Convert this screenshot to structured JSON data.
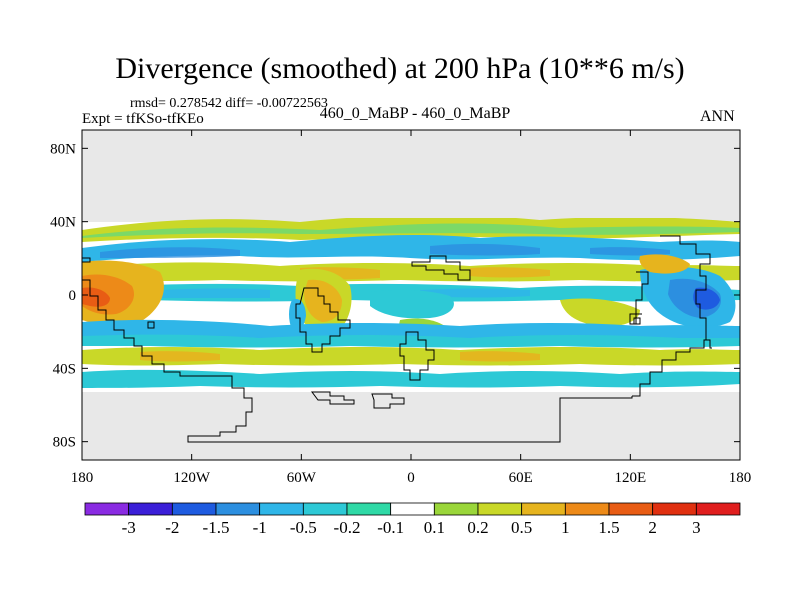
{
  "header": {
    "title": "Divergence (smoothed) at 200 hPa (10**6 m/s)",
    "stats": "rmsd= 0.278542 diff= -0.00722563",
    "experiment": "Expt = tfKSo-tfKEo",
    "case": "460_0_MaBP - 460_0_MaBP",
    "season": "ANN"
  },
  "chart_data": {
    "type": "heatmap",
    "title": "Divergence (smoothed) at 200 hPa (10**6 m/s)",
    "projection": "cylindrical equidistant",
    "xlim": [
      -180,
      180
    ],
    "ylim": [
      -90,
      90
    ],
    "x_ticks": [
      {
        "value": -180,
        "label": "180"
      },
      {
        "value": -120,
        "label": "120W"
      },
      {
        "value": -60,
        "label": "60W"
      },
      {
        "value": 0,
        "label": "0"
      },
      {
        "value": 60,
        "label": "60E"
      },
      {
        "value": 120,
        "label": "120E"
      },
      {
        "value": 180,
        "label": "180"
      }
    ],
    "y_ticks": [
      {
        "value": 80,
        "label": "80N"
      },
      {
        "value": 40,
        "label": "40N"
      },
      {
        "value": 0,
        "label": "0"
      },
      {
        "value": -40,
        "label": "40S"
      },
      {
        "value": -80,
        "label": "80S"
      }
    ],
    "background_color": "#e8e8e8",
    "colorbar": {
      "levels": [
        "-3",
        "-2",
        "-1.5",
        "-1",
        "-0.5",
        "-0.2",
        "-0.1",
        "0.1",
        "0.2",
        "0.5",
        "1",
        "1.5",
        "2",
        "3"
      ],
      "colors": [
        "#8a2be2",
        "#3b1fd8",
        "#1e5be0",
        "#2c8fe0",
        "#2fb6e8",
        "#2dc9d6",
        "#2fd9a6",
        "#ffffff",
        "#9ad63a",
        "#c9d828",
        "#e6b41e",
        "#ed8a18",
        "#e85c14",
        "#e03010",
        "#e01e1e"
      ]
    },
    "field_description": [
      {
        "lon": [
          -180,
          180
        ],
        "lat": [
          10,
          40
        ],
        "pattern": "zonal bands alternating 0.1 to 0.5 and -0.1 to -1"
      },
      {
        "lon": [
          -180,
          -140
        ],
        "lat": [
          -20,
          15
        ],
        "value": 1,
        "note": "positive maximum east Pacific"
      },
      {
        "lon": [
          -70,
          -35
        ],
        "lat": [
          -20,
          10
        ],
        "value": 0.5
      },
      {
        "lon": [
          -180,
          180
        ],
        "lat": [
          -55,
          -15
        ],
        "pattern": "zonal bands alternating positive and negative"
      },
      {
        "lon": [
          135,
          160
        ],
        "lat": [
          -10,
          5
        ],
        "value": -1.5,
        "note": "negative minimum west Pacific"
      }
    ]
  }
}
